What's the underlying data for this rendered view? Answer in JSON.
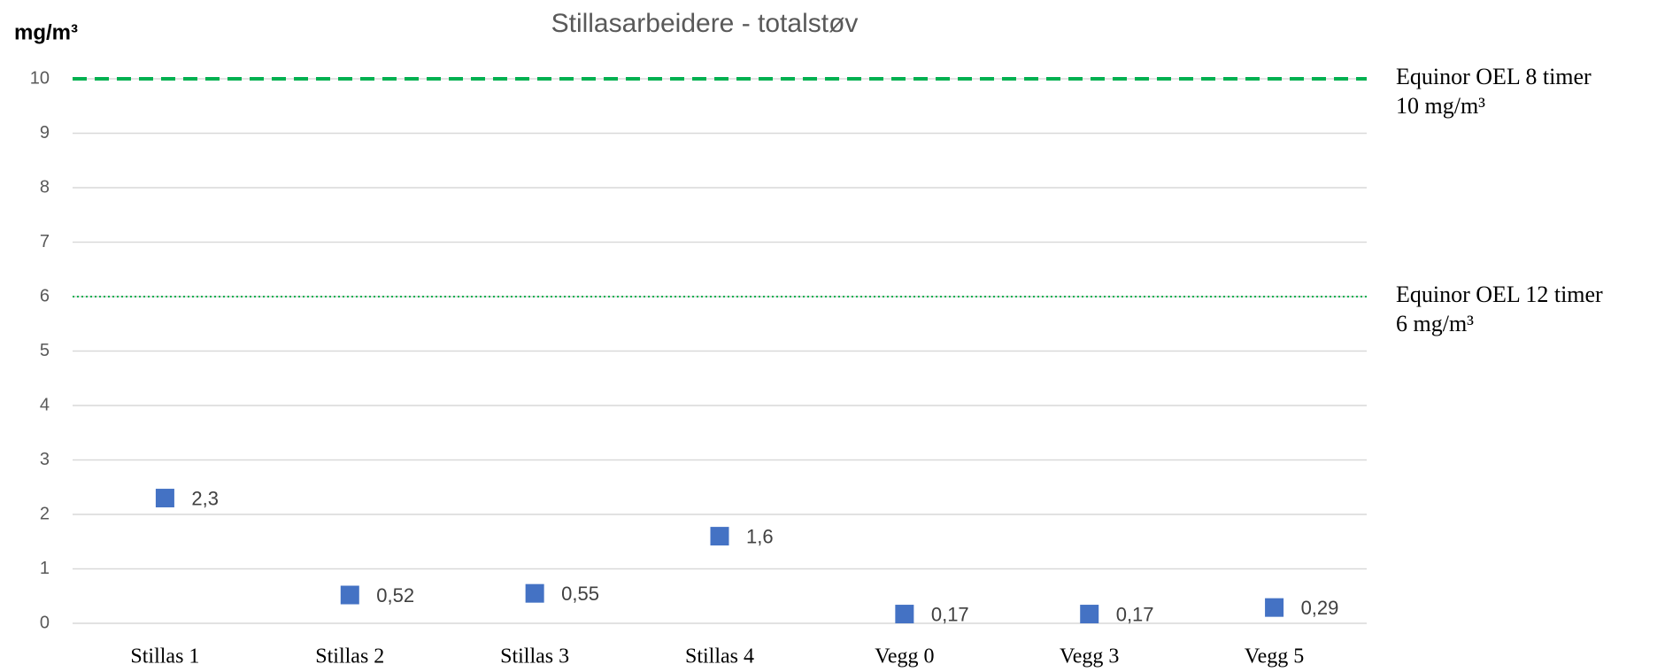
{
  "chart_data": {
    "type": "scatter",
    "title": "Stillasarbeidere - totalstøv",
    "y_label": "mg/m³",
    "categories": [
      "Stillas 1",
      "Stillas 2",
      "Stillas 3",
      "Stillas 4",
      "Vegg 0",
      "Vegg 3",
      "Vegg 5"
    ],
    "values": [
      2.3,
      0.52,
      0.55,
      1.6,
      0.17,
      0.17,
      0.29
    ],
    "value_labels": [
      "2,3",
      "0,52",
      "0,55",
      "1,6",
      "0,17",
      "0,17",
      "0,29"
    ],
    "color": "#4472c4",
    "ylim": [
      0,
      10
    ],
    "yticks": [
      0,
      1,
      2,
      3,
      4,
      5,
      6,
      7,
      8,
      9,
      10
    ],
    "grid": true,
    "reference_lines": [
      {
        "value": 10,
        "label_lines": [
          "Equinor OEL 8 timer",
          "10 mg/m³"
        ],
        "color": "#00b050",
        "style": "dashed"
      },
      {
        "value": 6,
        "label_lines": [
          "Equinor OEL 12 timer",
          "6 mg/m³"
        ],
        "color": "#00b050",
        "style": "dotted"
      }
    ]
  }
}
